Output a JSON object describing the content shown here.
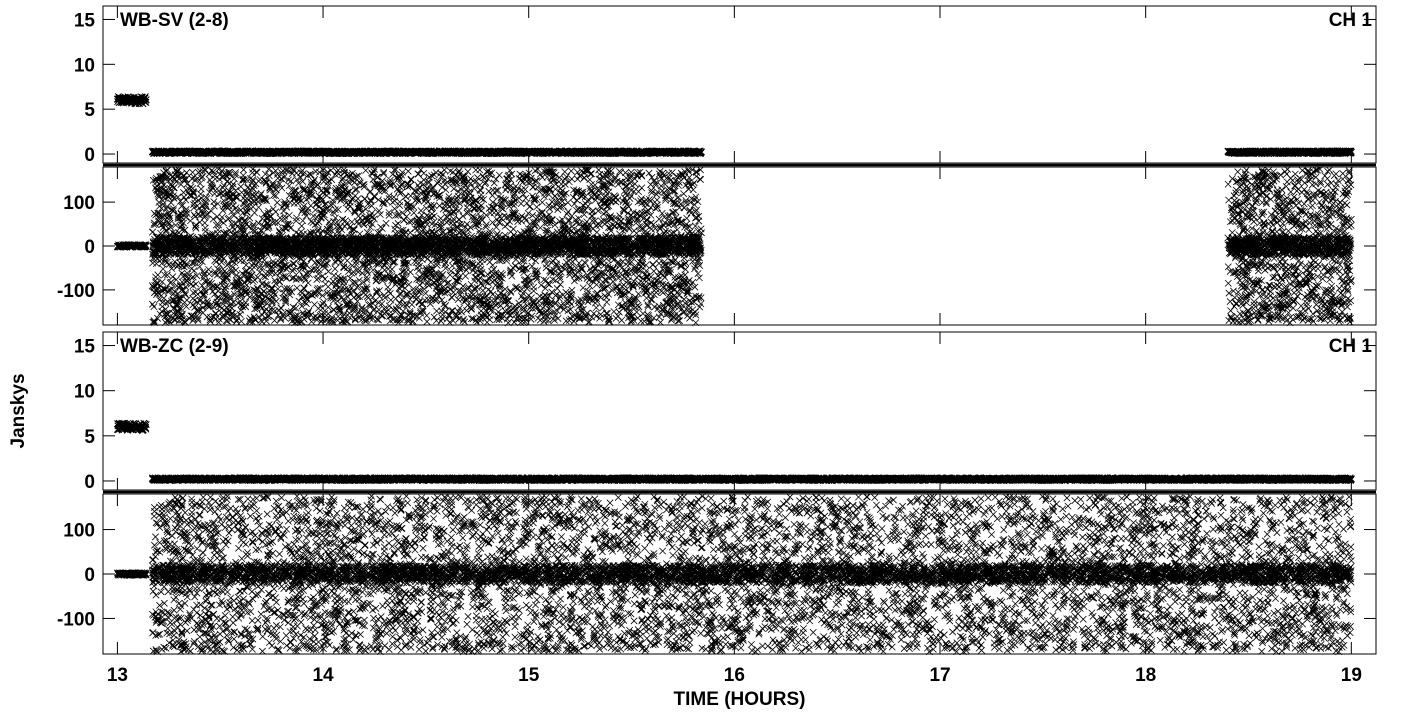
{
  "chart_data": {
    "type": "scatter",
    "marker": "x",
    "marker_color": "#000000",
    "ylabel": "Janskys",
    "xlabel": "TIME (HOURS)",
    "xlim": [
      12.93,
      19.12
    ],
    "x_ticks": [
      13,
      14,
      15,
      16,
      17,
      18,
      19
    ],
    "panels": [
      {
        "title": "WB-SV (2-8)",
        "channel": "CH 1",
        "amplitude": {
          "ylim": [
            -1,
            16.5
          ],
          "y_ticks": [
            0,
            5,
            10,
            15
          ],
          "segments": [
            {
              "x_start": 13.0,
              "x_end": 13.14,
              "level": 6.0,
              "spread": 0.8
            },
            {
              "x_start": 13.17,
              "x_end": 15.84,
              "level": 0.2,
              "spread": 0.3
            },
            {
              "x_start": 18.4,
              "x_end": 19.0,
              "level": 0.2,
              "spread": 0.3
            }
          ]
        },
        "phase": {
          "ylim": [
            -180,
            180
          ],
          "y_ticks": [
            -100,
            0,
            100
          ],
          "segments": [
            {
              "x_start": 13.0,
              "x_end": 13.14,
              "kind": "flat",
              "level": 0,
              "spread": 6
            },
            {
              "x_start": 13.17,
              "x_end": 15.84,
              "kind": "noisy"
            },
            {
              "x_start": 18.4,
              "x_end": 19.0,
              "kind": "noisy"
            }
          ]
        }
      },
      {
        "title": "WB-ZC (2-9)",
        "channel": "CH 1",
        "amplitude": {
          "ylim": [
            -1,
            16.5
          ],
          "y_ticks": [
            0,
            5,
            10,
            15
          ],
          "segments": [
            {
              "x_start": 13.0,
              "x_end": 13.14,
              "level": 6.0,
              "spread": 0.8
            },
            {
              "x_start": 13.17,
              "x_end": 19.0,
              "level": 0.2,
              "spread": 0.3
            }
          ]
        },
        "phase": {
          "ylim": [
            -180,
            180
          ],
          "y_ticks": [
            -100,
            0,
            100
          ],
          "segments": [
            {
              "x_start": 13.0,
              "x_end": 13.14,
              "kind": "flat",
              "level": 0,
              "spread": 6
            },
            {
              "x_start": 13.17,
              "x_end": 19.0,
              "kind": "noisy"
            }
          ]
        }
      }
    ]
  }
}
